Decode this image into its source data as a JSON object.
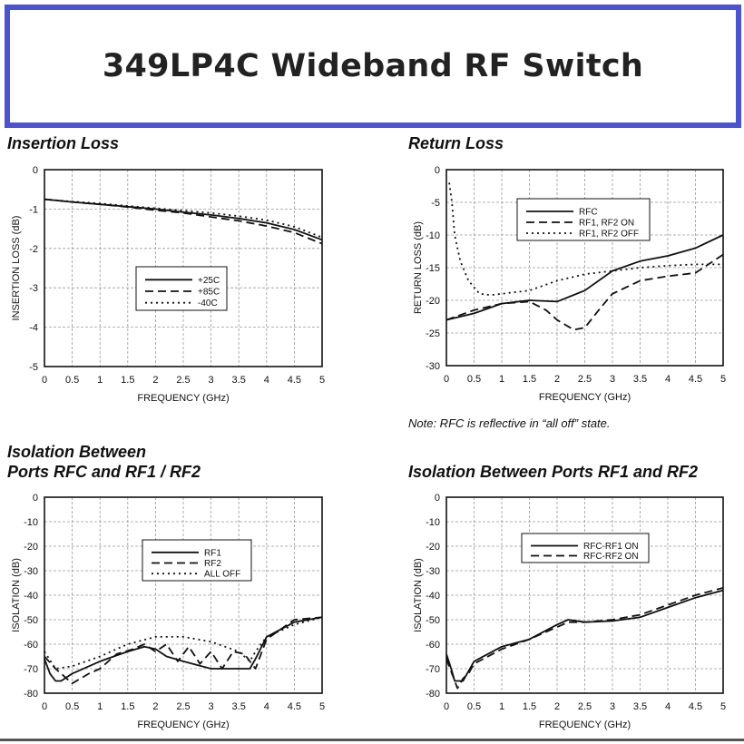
{
  "banner": {
    "title": "349LP4C Wideband RF Switch"
  },
  "colors": {
    "banner_border": "#4a52d6",
    "plot_ink": "#111111",
    "grid": "#999999"
  },
  "notes": {
    "return_loss": "Note: RFC is reflective in “all off” state."
  },
  "chart_data": [
    {
      "id": "insertion",
      "type": "line",
      "title": "Insertion Loss",
      "xlabel": "FREQUENCY (GHz)",
      "ylabel": "INSERTION LOSS (dB)",
      "xlim": [
        0,
        5
      ],
      "ylim": [
        -5,
        0
      ],
      "xticks": [
        "0",
        "0.5",
        "1",
        "1.5",
        "2",
        "2.5",
        "3",
        "3.5",
        "4",
        "4.5",
        "5"
      ],
      "yticks": [
        "0",
        "-1",
        "-2",
        "-3",
        "-4",
        "-5"
      ],
      "ytick_values": [
        0,
        -1,
        -2,
        -3,
        -4,
        -5
      ],
      "grid": true,
      "legend_position": "center",
      "series": [
        {
          "name": "+25C",
          "dash": "solid",
          "x": [
            0,
            0.5,
            1,
            1.5,
            2,
            2.5,
            3,
            3.5,
            4,
            4.5,
            5
          ],
          "y": [
            -0.75,
            -0.82,
            -0.88,
            -0.94,
            -1.0,
            -1.08,
            -1.15,
            -1.24,
            -1.35,
            -1.52,
            -1.78
          ]
        },
        {
          "name": "+85C",
          "dash": "dash",
          "x": [
            0,
            0.5,
            1,
            1.5,
            2,
            2.5,
            3,
            3.5,
            4,
            4.5,
            5
          ],
          "y": [
            -0.75,
            -0.82,
            -0.88,
            -0.95,
            -1.03,
            -1.1,
            -1.2,
            -1.3,
            -1.43,
            -1.6,
            -1.88
          ]
        },
        {
          "name": "-40C",
          "dash": "dot",
          "x": [
            0,
            0.5,
            1,
            1.5,
            2,
            2.5,
            3,
            3.5,
            4,
            4.5,
            5
          ],
          "y": [
            -0.75,
            -0.81,
            -0.86,
            -0.92,
            -0.98,
            -1.04,
            -1.1,
            -1.18,
            -1.28,
            -1.45,
            -1.72
          ]
        }
      ]
    },
    {
      "id": "return",
      "type": "line",
      "title": "Return Loss",
      "xlabel": "FREQUENCY (GHz)",
      "ylabel": "RETURN LOSS (dB)",
      "xlim": [
        0,
        5
      ],
      "ylim": [
        -30,
        0
      ],
      "xticks": [
        "0",
        "0.5",
        "1",
        "1.5",
        "2",
        "2.5",
        "3",
        "3.5",
        "4",
        "4.5",
        "5"
      ],
      "yticks": [
        "0",
        "-5",
        "-10",
        "-15",
        "-20",
        "-25",
        "-30"
      ],
      "ytick_values": [
        0,
        -5,
        -10,
        -15,
        -20,
        -25,
        -30
      ],
      "grid": true,
      "legend_position": "top-right",
      "series": [
        {
          "name": "RFC",
          "dash": "solid",
          "x": [
            0,
            0.5,
            1,
            1.5,
            2,
            2.5,
            3,
            3.5,
            4,
            4.5,
            5
          ],
          "y": [
            -23,
            -22,
            -20.5,
            -20,
            -20.2,
            -18.5,
            -15.5,
            -14,
            -13.2,
            -12,
            -10
          ]
        },
        {
          "name": "RF1, RF2 ON",
          "dash": "dash",
          "x": [
            0,
            0.5,
            1,
            1.5,
            1.8,
            2,
            2.3,
            2.5,
            2.8,
            3,
            3.5,
            4,
            4.5,
            5
          ],
          "y": [
            -23,
            -21.5,
            -20.5,
            -20.2,
            -21.5,
            -23,
            -24.5,
            -24.2,
            -21,
            -19,
            -17,
            -16.3,
            -15.8,
            -13
          ]
        },
        {
          "name": "RF1, RF2 OFF",
          "dash": "dot",
          "x": [
            0.05,
            0.1,
            0.15,
            0.25,
            0.4,
            0.6,
            0.8,
            1,
            1.5,
            2,
            2.5,
            3,
            3.5,
            4,
            4.5,
            5
          ],
          "y": [
            -2,
            -5,
            -10,
            -14,
            -17,
            -19,
            -19.2,
            -19,
            -18.5,
            -17,
            -16,
            -15.5,
            -15,
            -14.7,
            -14.5,
            -14.5
          ]
        }
      ]
    },
    {
      "id": "iso1",
      "type": "line",
      "title": "Isolation Between\nPorts RFC and RF1 / RF2",
      "xlabel": "FREQUENCY (GHz)",
      "ylabel": "ISOLATION (dB)",
      "xlim": [
        0,
        5
      ],
      "ylim": [
        -80,
        0
      ],
      "xticks": [
        "0",
        "0.5",
        "1",
        "1.5",
        "2",
        "2.5",
        "3",
        "3.5",
        "4",
        "4.5",
        "5"
      ],
      "yticks": [
        "0",
        "-10",
        "-20",
        "-30",
        "-40",
        "-50",
        "-60",
        "-70",
        "-80"
      ],
      "ytick_values": [
        0,
        -10,
        -20,
        -30,
        -40,
        -50,
        -60,
        -70,
        -80
      ],
      "grid": true,
      "legend_position": "top-right",
      "series": [
        {
          "name": "RF1",
          "dash": "solid",
          "x": [
            0,
            0.1,
            0.2,
            0.3,
            0.5,
            1,
            1.5,
            1.8,
            2,
            2.2,
            2.5,
            3,
            3.5,
            3.7,
            3.8,
            4,
            4.5,
            5
          ],
          "y": [
            -66,
            -72,
            -75,
            -75,
            -72,
            -67,
            -63,
            -61,
            -62,
            -65,
            -67,
            -70,
            -70,
            -70,
            -66,
            -57,
            -51,
            -49
          ]
        },
        {
          "name": "RF2",
          "dash": "dash",
          "x": [
            0,
            0.2,
            0.5,
            0.8,
            1,
            1.3,
            1.6,
            1.8,
            2,
            2.2,
            2.4,
            2.6,
            2.8,
            3,
            3.2,
            3.4,
            3.6,
            3.8,
            4,
            4.5,
            5
          ],
          "y": [
            -65,
            -70,
            -76,
            -72,
            -70,
            -64,
            -62,
            -60,
            -63,
            -60,
            -67,
            -61,
            -68,
            -63,
            -70,
            -63,
            -64,
            -70,
            -58,
            -50,
            -49
          ]
        },
        {
          "name": "ALL OFF",
          "dash": "dot",
          "x": [
            0,
            0.2,
            0.5,
            1,
            1.5,
            2,
            2.5,
            3,
            3.5,
            3.7,
            3.8,
            4,
            4.5,
            5
          ],
          "y": [
            -63,
            -70,
            -69,
            -65,
            -60,
            -57,
            -57,
            -59,
            -63,
            -67,
            -63,
            -57,
            -52,
            -49
          ]
        }
      ]
    },
    {
      "id": "iso2",
      "type": "line",
      "title": "Isolation Between Ports RF1 and RF2",
      "xlabel": "FREQUENCY (GHz)",
      "ylabel": "ISOLATION (dB)",
      "xlim": [
        0,
        5
      ],
      "ylim": [
        -80,
        0
      ],
      "xticks": [
        "0",
        "0.5",
        "1",
        "1.5",
        "2",
        "2.5",
        "3",
        "3.5",
        "4",
        "4.5",
        "5"
      ],
      "yticks": [
        "0",
        "-10",
        "-20",
        "-30",
        "-40",
        "-50",
        "-60",
        "-70",
        "-80"
      ],
      "ytick_values": [
        0,
        -10,
        -20,
        -30,
        -40,
        -50,
        -60,
        -70,
        -80
      ],
      "grid": true,
      "legend_position": "top-right",
      "series": [
        {
          "name": "RFC-RF1 ON",
          "dash": "solid",
          "x": [
            0,
            0.1,
            0.15,
            0.3,
            0.4,
            0.5,
            1,
            1.5,
            2,
            2.2,
            2.5,
            3,
            3.5,
            4,
            4.5,
            5
          ],
          "y": [
            -64,
            -71,
            -75,
            -75,
            -71,
            -67,
            -61,
            -58,
            -52,
            -50,
            -51,
            -50.5,
            -49,
            -45,
            -41,
            -38
          ]
        },
        {
          "name": "RFC-RF2 ON",
          "dash": "dash",
          "x": [
            0,
            0.1,
            0.2,
            0.3,
            0.4,
            0.5,
            1,
            1.5,
            2,
            2.2,
            2.5,
            3,
            3.5,
            4,
            4.5,
            5
          ],
          "y": [
            -66,
            -72,
            -78,
            -74,
            -72,
            -68,
            -62,
            -58,
            -53,
            -51,
            -51,
            -50,
            -48,
            -44,
            -40,
            -37
          ]
        }
      ]
    }
  ]
}
